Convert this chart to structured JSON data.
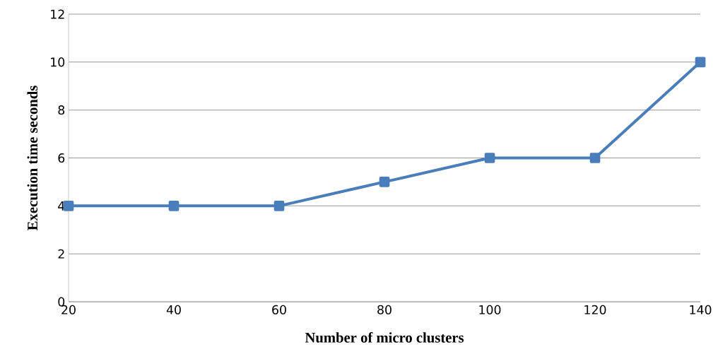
{
  "chart_data": {
    "type": "line",
    "xlabel": "Number of micro clusters",
    "ylabel": "Execution time seconds",
    "x": [
      20,
      40,
      60,
      80,
      100,
      120,
      140
    ],
    "series": [
      {
        "color": "#4a7ebb",
        "values": [
          4,
          4,
          4,
          5,
          6,
          6,
          10
        ]
      }
    ],
    "xlim": [
      20,
      140
    ],
    "xticks": [
      20,
      40,
      60,
      80,
      100,
      120,
      140
    ],
    "ylim": [
      0,
      12
    ],
    "yticks": [
      0,
      2,
      4,
      6,
      8,
      10,
      12
    ],
    "grid": "y",
    "marker": "square",
    "line_style": "solid"
  }
}
